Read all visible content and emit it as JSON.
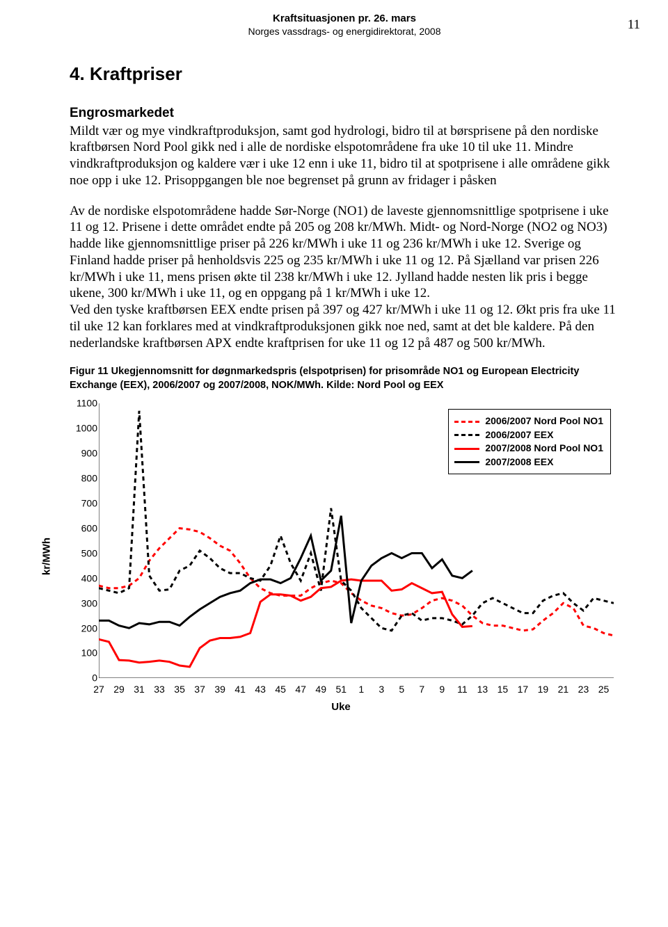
{
  "header": {
    "title": "Kraftsituasjonen pr. 26. mars",
    "subtitle": "Norges vassdrags- og energidirektorat, 2008",
    "page_number": "11"
  },
  "section": {
    "number_title": "4. Kraftpriser",
    "subtitle": "Engrosmarkedet",
    "para1": "Mildt vær og mye vindkraftproduksjon, samt god hydrologi, bidro til at børsprisene på den nordiske kraftbørsen Nord Pool gikk ned i alle de nordiske elspotområdene fra uke 10 til uke 11. Mindre vindkraftproduksjon og kaldere vær i uke 12 enn i uke 11, bidro til at spotprisene i alle områdene gikk noe opp i uke 12. Prisoppgangen ble noe begrenset på grunn av fridager i påsken",
    "para2": "Av de nordiske elspotområdene hadde Sør-Norge (NO1) de laveste gjennomsnittlige spotprisene i uke 11 og 12. Prisene i dette området endte på 205 og 208 kr/MWh. Midt- og Nord-Norge (NO2 og NO3) hadde like gjennomsnittlige priser på 226 kr/MWh i uke 11 og 236 kr/MWh i uke 12. Sverige og Finland hadde priser på henholdsvis 225 og 235 kr/MWh i uke 11 og 12. På Sjælland var prisen 226 kr/MWh i uke 11, mens prisen økte til 238 kr/MWh i uke 12. Jylland hadde nesten lik pris i begge ukene, 300 kr/MWh i uke 11, og en oppgang på 1 kr/MWh i uke 12.",
    "para3": "Ved den tyske kraftbørsen EEX endte prisen på 397 og 427 kr/MWh i uke 11 og 12. Økt pris fra uke 11 til uke 12 kan forklares med at vindkraftproduksjonen gikk noe ned, samt at det ble kaldere. På den nederlandske kraftbørsen APX endte kraftprisen for uke 11 og 12 på 487 og 500 kr/MWh."
  },
  "figure": {
    "caption": "Figur 11 Ukegjennomsnitt for døgnmarkedspris (elspotprisen) for prisområde NO1 og European Electricity Exchange (EEX), 2006/2007 og 2007/2008, NOK/MWh. Kilde: Nord Pool og EEX",
    "type": "line",
    "y_label": "kr/MWh",
    "x_label": "Uke",
    "ylim": [
      0,
      1100
    ],
    "ytick_step": 100,
    "x_categories": [
      "27",
      "29",
      "31",
      "33",
      "35",
      "37",
      "39",
      "41",
      "43",
      "45",
      "47",
      "49",
      "51",
      "1",
      "3",
      "5",
      "7",
      "9",
      "11",
      "13",
      "15",
      "17",
      "19",
      "21",
      "23",
      "25"
    ],
    "x_weeks": [
      27,
      28,
      29,
      30,
      31,
      32,
      33,
      34,
      35,
      36,
      37,
      38,
      39,
      40,
      41,
      42,
      43,
      44,
      45,
      46,
      47,
      48,
      49,
      50,
      51,
      52,
      1,
      2,
      3,
      4,
      5,
      6,
      7,
      8,
      9,
      10,
      11,
      12,
      13,
      14,
      15,
      16,
      17,
      18,
      19,
      20,
      21,
      22,
      23,
      24,
      25,
      26
    ],
    "background_color": "#ffffff",
    "tick_color": "#000000",
    "axis_color": "#000000",
    "line_width": 3,
    "series": [
      {
        "name": "2006/2007 Nord Pool NO1",
        "color": "#ff0000",
        "dash": "6,5",
        "values": [
          370,
          360,
          360,
          370,
          400,
          470,
          520,
          560,
          600,
          595,
          585,
          560,
          530,
          510,
          460,
          400,
          360,
          340,
          330,
          330,
          330,
          360,
          380,
          390,
          380,
          340,
          310,
          290,
          280,
          260,
          250,
          255,
          280,
          310,
          320,
          310,
          290,
          250,
          220,
          210,
          210,
          200,
          190,
          195,
          230,
          260,
          300,
          280,
          210,
          200,
          180,
          170
        ]
      },
      {
        "name": "2006/2007 EEX",
        "color": "#000000",
        "dash": "6,5",
        "values": [
          360,
          350,
          340,
          360,
          1070,
          410,
          350,
          355,
          430,
          450,
          510,
          480,
          440,
          420,
          420,
          400,
          390,
          450,
          570,
          460,
          390,
          500,
          350,
          680,
          390,
          350,
          280,
          240,
          200,
          190,
          250,
          260,
          230,
          240,
          240,
          230,
          215,
          250,
          300,
          320,
          300,
          280,
          260,
          260,
          310,
          330,
          340,
          300,
          270,
          320,
          310,
          300
        ]
      },
      {
        "name": "2007/2008 Nord Pool NO1",
        "color": "#ff0000",
        "dash": null,
        "values": [
          155,
          145,
          72,
          70,
          62,
          65,
          70,
          65,
          50,
          45,
          120,
          150,
          160,
          160,
          165,
          180,
          305,
          335,
          335,
          330,
          310,
          325,
          360,
          365,
          390,
          395,
          390,
          390,
          390,
          350,
          355,
          380,
          360,
          340,
          345,
          255,
          205,
          208
        ]
      },
      {
        "name": "2007/2008 EEX",
        "color": "#000000",
        "dash": null,
        "values": [
          230,
          230,
          210,
          200,
          220,
          215,
          225,
          225,
          210,
          245,
          275,
          300,
          325,
          340,
          350,
          380,
          395,
          395,
          380,
          400,
          480,
          570,
          390,
          430,
          650,
          220,
          390,
          450,
          480,
          500,
          480,
          500,
          500,
          440,
          475,
          410,
          400,
          430
        ]
      }
    ],
    "legend_position": "top-right",
    "font_sizes": {
      "legend": 14,
      "ticks": 14,
      "axis_label": 15
    }
  }
}
